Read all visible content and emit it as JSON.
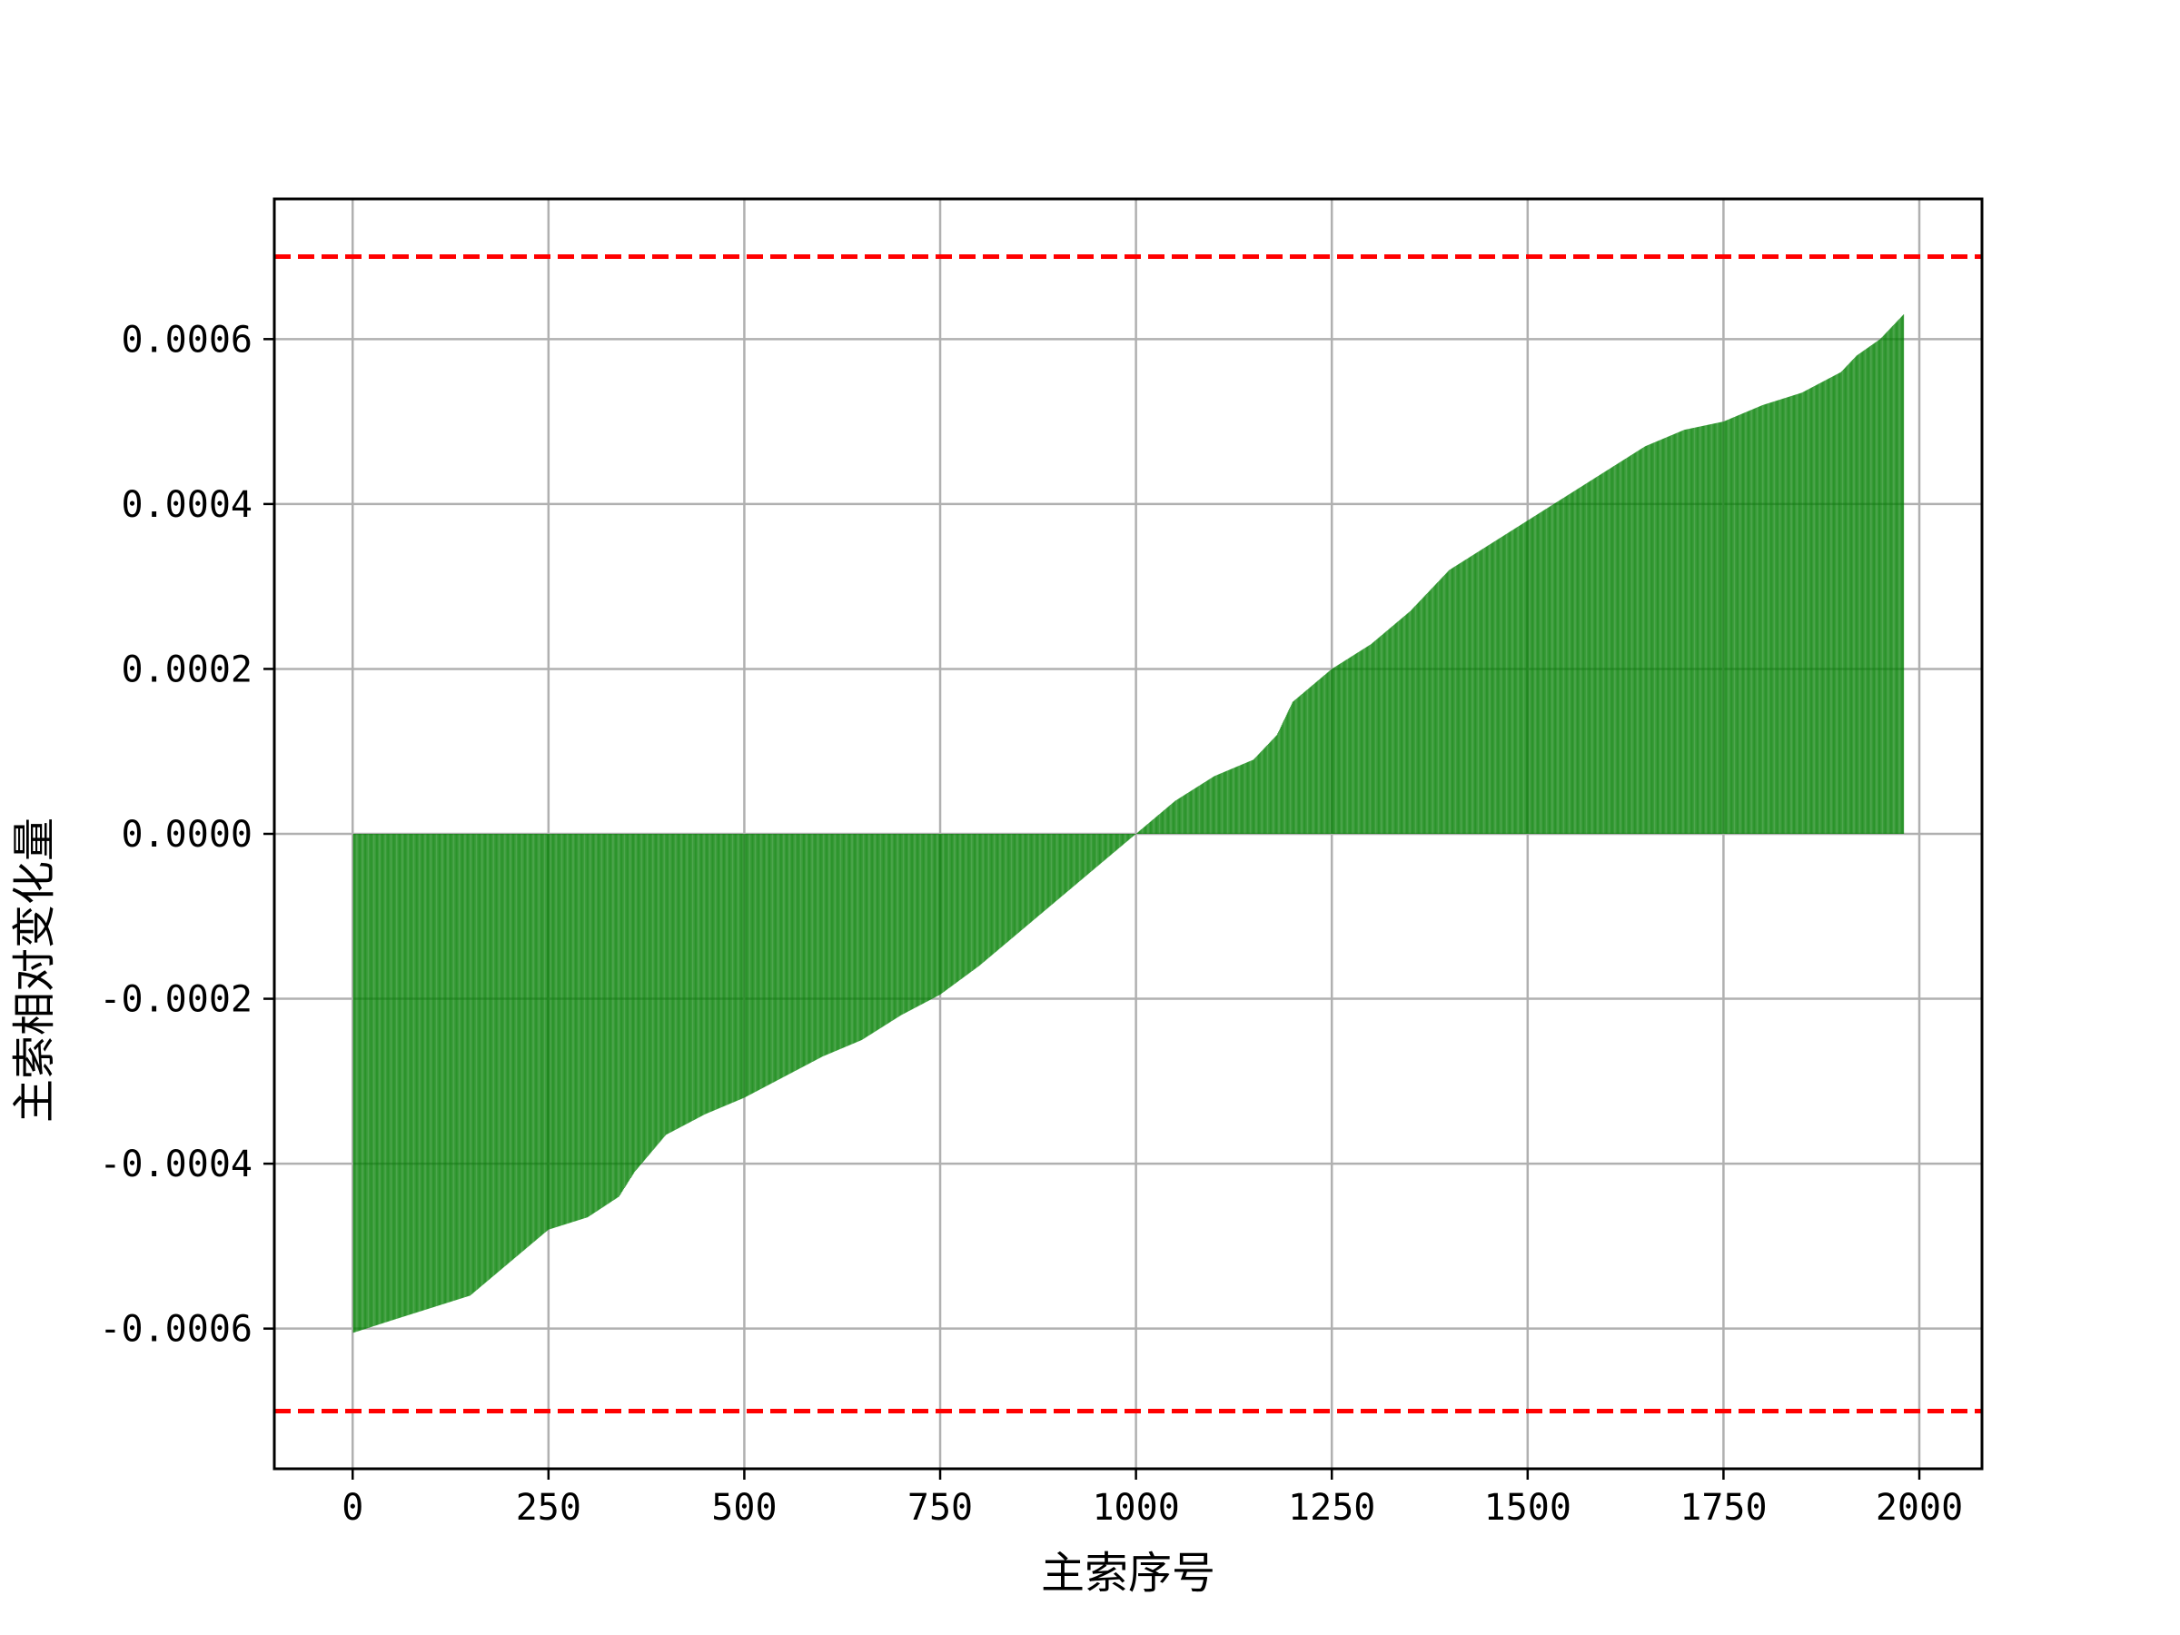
{
  "chart_data": {
    "type": "bar",
    "title": "",
    "xlabel": "主索序号",
    "ylabel": "主索相对变化量",
    "xlim": [
      -100,
      2080
    ],
    "ylim": [
      -0.00077,
      0.00077
    ],
    "grid": true,
    "legend": "none",
    "x_ticks": [
      {
        "value": 0,
        "label": "0"
      },
      {
        "value": 250,
        "label": "250"
      },
      {
        "value": 500,
        "label": "500"
      },
      {
        "value": 750,
        "label": "750"
      },
      {
        "value": 1000,
        "label": "1000"
      },
      {
        "value": 1250,
        "label": "1250"
      },
      {
        "value": 1500,
        "label": "1500"
      },
      {
        "value": 1750,
        "label": "1750"
      },
      {
        "value": 2000,
        "label": "2000"
      }
    ],
    "y_ticks": [
      {
        "value": -0.0006,
        "label": "-0.0006"
      },
      {
        "value": -0.0004,
        "label": "-0.0004"
      },
      {
        "value": -0.0002,
        "label": "-0.0002"
      },
      {
        "value": 0.0,
        "label": "0.0000"
      },
      {
        "value": 0.0002,
        "label": "0.0002"
      },
      {
        "value": 0.0004,
        "label": "0.0004"
      },
      {
        "value": 0.0006,
        "label": "0.0006"
      }
    ],
    "reference_lines": [
      {
        "y": 0.0007,
        "color": "#ff0000",
        "style": "dashed"
      },
      {
        "y": -0.0007,
        "color": "#ff0000",
        "style": "dashed"
      }
    ],
    "bar_color": "#007f00",
    "bar_count": 1980,
    "bar_x_start": 1,
    "sorted_profile": {
      "description_indices": [
        1,
        50,
        100,
        150,
        200,
        250,
        300,
        340,
        360,
        400,
        450,
        500,
        550,
        600,
        650,
        700,
        750,
        800,
        850,
        900,
        950,
        1000,
        1050,
        1100,
        1150,
        1180,
        1200,
        1250,
        1300,
        1350,
        1380,
        1400,
        1450,
        1500,
        1550,
        1600,
        1650,
        1700,
        1750,
        1800,
        1850,
        1900,
        1920,
        1950,
        1980
      ],
      "values": [
        -0.000605,
        -0.00059,
        -0.000575,
        -0.00056,
        -0.00052,
        -0.00048,
        -0.000465,
        -0.00044,
        -0.00041,
        -0.000365,
        -0.00034,
        -0.00032,
        -0.000295,
        -0.00027,
        -0.00025,
        -0.00022,
        -0.000195,
        -0.00016,
        -0.00012,
        -8e-05,
        -4e-05,
        0.0,
        4e-05,
        7e-05,
        9e-05,
        0.00012,
        0.00016,
        0.0002,
        0.00023,
        0.00027,
        0.0003,
        0.00032,
        0.00035,
        0.00038,
        0.00041,
        0.00044,
        0.00047,
        0.00049,
        0.0005,
        0.00052,
        0.000535,
        0.00056,
        0.00058,
        0.0006,
        0.00063
      ]
    }
  }
}
